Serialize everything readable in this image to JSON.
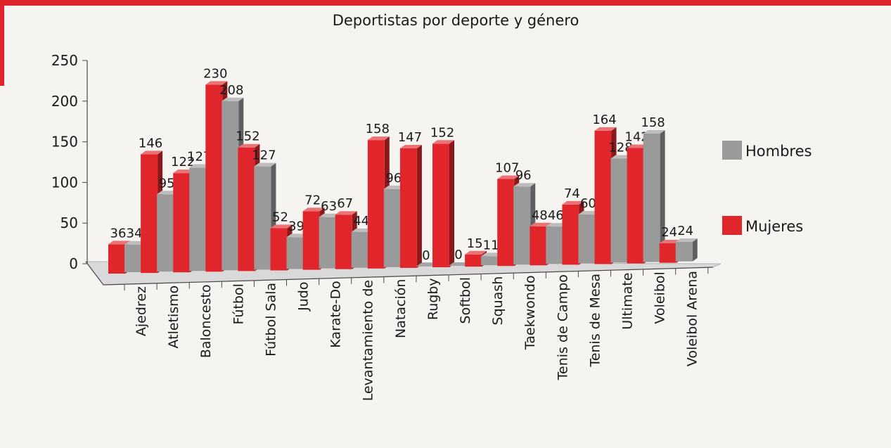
{
  "chart_data": {
    "type": "bar",
    "title": "Deportistas por deporte y género",
    "xlabel": "",
    "ylabel": "",
    "ylim": [
      0,
      250
    ],
    "yticks": [
      0,
      50,
      100,
      150,
      200,
      250
    ],
    "legend_position": "right",
    "grid": false,
    "categories": [
      "Ajedrez",
      "Atletismo",
      "Baloncesto",
      "Fútbol",
      "Fútbol Sala",
      "Judo",
      "Karate-Do",
      "Levantamiento de",
      "Natación",
      "Rugby",
      "Softbol",
      "Squash",
      "Taekwondo",
      "Tenis de Campo",
      "Tenis de Mesa",
      "Ultimate",
      "Voleibol",
      "Voleibol Arena"
    ],
    "series": [
      {
        "name": "Mujeres",
        "color": "#e0262b",
        "values": [
          36,
          146,
          122,
          230,
          152,
          52,
          72,
          67,
          158,
          147,
          152,
          15,
          107,
          48,
          74,
          164,
          142,
          24
        ]
      },
      {
        "name": "Hombres",
        "color": "#9a9a9a",
        "values": [
          34,
          95,
          127,
          208,
          127,
          39,
          63,
          44,
          96,
          0,
          0,
          11,
          96,
          46,
          60,
          128,
          158,
          24
        ]
      }
    ],
    "legend": [
      {
        "name": "Hombres",
        "color": "#9a9a9a"
      },
      {
        "name": "Mujeres",
        "color": "#e0262b"
      }
    ]
  }
}
